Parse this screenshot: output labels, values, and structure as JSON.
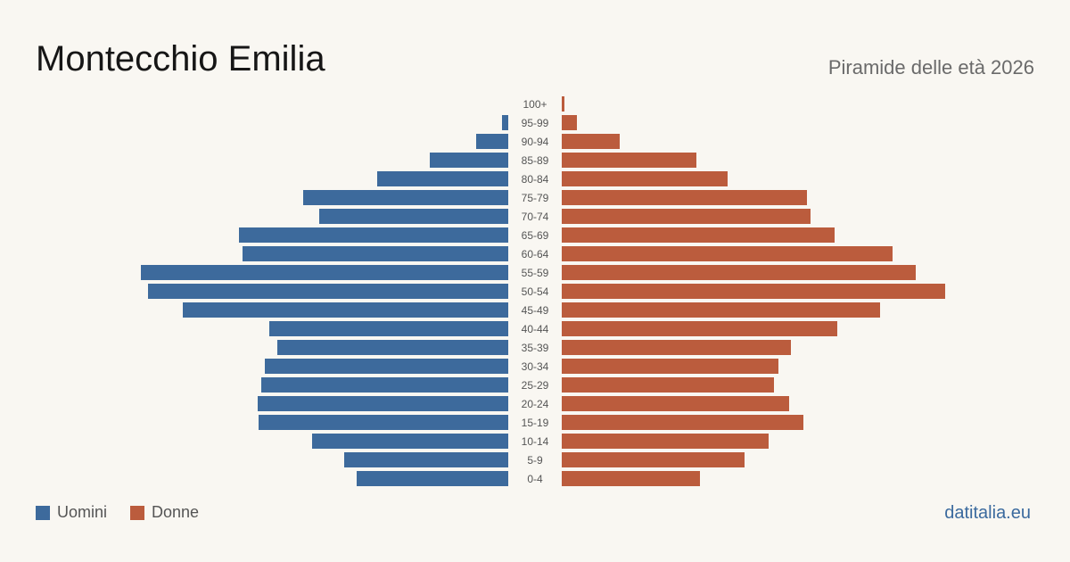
{
  "header": {
    "title": "Montecchio Emilia",
    "subtitle": "Piramide delle età 2026"
  },
  "legend": {
    "male_label": "Uomini",
    "female_label": "Donne"
  },
  "footer": {
    "brand": "datitalia.eu"
  },
  "colors": {
    "male": "#3d6a9c",
    "female": "#bb5c3d",
    "background": "#f9f7f2",
    "label": "#555555"
  },
  "chart_data": {
    "type": "bar",
    "orientation": "horizontal-population-pyramid",
    "categories": [
      "100+",
      "95-99",
      "90-94",
      "85-89",
      "80-84",
      "75-79",
      "70-74",
      "65-69",
      "60-64",
      "55-59",
      "50-54",
      "45-49",
      "40-44",
      "35-39",
      "30-34",
      "25-29",
      "20-24",
      "15-19",
      "10-14",
      "5-9",
      "0-4"
    ],
    "series": [
      {
        "name": "Uomini",
        "values": [
          0,
          7,
          36,
          88,
          147,
          230,
          212,
          302,
          298,
          412,
          404,
          365,
          268,
          259,
          273,
          277,
          281,
          280,
          220,
          184,
          170
        ]
      },
      {
        "name": "Donne",
        "values": [
          3,
          17,
          65,
          151,
          186,
          275,
          279,
          306,
          371,
          397,
          430,
          357,
          309,
          257,
          243,
          238,
          255,
          271,
          232,
          205,
          155
        ]
      }
    ],
    "max_value": 430,
    "grid": false,
    "legend_position": "bottom-left"
  }
}
